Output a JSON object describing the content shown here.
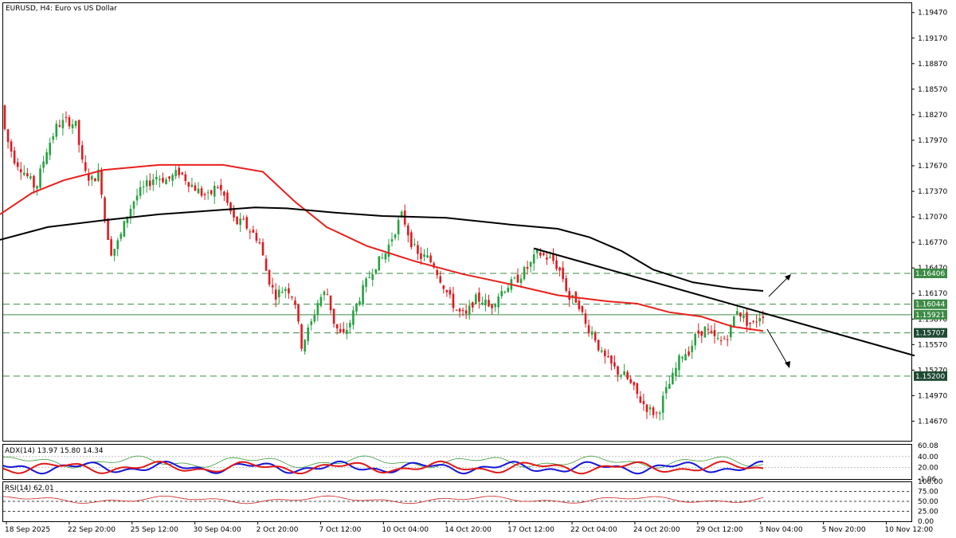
{
  "colors": {
    "background": "#ffffff",
    "grid": "#c0c0c0",
    "bull_candle": "#26a241",
    "bear_candle": "#e0191f",
    "level_line": "#3d8b45",
    "ma_fast": "#e8201c",
    "ma_slow": "#000000",
    "trendline": "#000000",
    "adx_main": "#3a9b3a",
    "adx_plus": "#1515d8",
    "adx_minus": "#e01818",
    "rsi": "#cc2020",
    "price_label_bg": "#3d8b45",
    "price_label_dark_bg": "#1e4a32"
  },
  "chart_data": [
    {
      "type": "candlestick",
      "title": "EURUSD, H4:  Euro vs US Dollar",
      "ylim": [
        1.1444,
        1.1958
      ],
      "y_ticks": [
        "1.19470",
        "1.19170",
        "1.18870",
        "1.18570",
        "1.18270",
        "1.17970",
        "1.17670",
        "1.17370",
        "1.17070",
        "1.16770",
        "1.16470",
        "1.16170",
        "1.15870",
        "1.15570",
        "1.15270",
        "1.14970",
        "1.14670"
      ],
      "x_ticks": [
        "18 Sep 2025",
        "22 Sep 20:00",
        "25 Sep 12:00",
        "30 Sep 04:00",
        "2 Oct 20:00",
        "7 Oct 12:00",
        "10 Oct 04:00",
        "14 Oct 20:00",
        "17 Oct 12:00",
        "22 Oct 04:00",
        "24 Oct 20:00",
        "29 Oct 12:00",
        "3 Nov 04:00",
        "5 Nov 20:00",
        "10 Nov 12:00"
      ],
      "close_path": [
        [
          0,
          1.1838
        ],
        [
          8,
          1.18
        ],
        [
          18,
          1.1775
        ],
        [
          30,
          1.176
        ],
        [
          45,
          1.174
        ],
        [
          58,
          1.1785
        ],
        [
          72,
          1.1815
        ],
        [
          85,
          1.182
        ],
        [
          95,
          1.1815
        ],
        [
          105,
          1.176
        ],
        [
          115,
          1.175
        ],
        [
          125,
          1.176
        ],
        [
          132,
          1.17
        ],
        [
          140,
          1.1665
        ],
        [
          150,
          1.168
        ],
        [
          160,
          1.171
        ],
        [
          170,
          1.173
        ],
        [
          180,
          1.174
        ],
        [
          195,
          1.1755
        ],
        [
          210,
          1.175
        ],
        [
          225,
          1.176
        ],
        [
          240,
          1.1745
        ],
        [
          252,
          1.1735
        ],
        [
          262,
          1.173
        ],
        [
          272,
          1.1745
        ],
        [
          282,
          1.173
        ],
        [
          295,
          1.17
        ],
        [
          305,
          1.17
        ],
        [
          315,
          1.169
        ],
        [
          325,
          1.168
        ],
        [
          335,
          1.164
        ],
        [
          345,
          1.1615
        ],
        [
          360,
          1.1625
        ],
        [
          370,
          1.161
        ],
        [
          378,
          1.1555
        ],
        [
          390,
          1.158
        ],
        [
          400,
          1.161
        ],
        [
          410,
          1.162
        ],
        [
          420,
          1.158
        ],
        [
          430,
          1.1565
        ],
        [
          440,
          1.1585
        ],
        [
          450,
          1.161
        ],
        [
          460,
          1.163
        ],
        [
          470,
          1.165
        ],
        [
          482,
          1.166
        ],
        [
          495,
          1.169
        ],
        [
          505,
          1.171
        ],
        [
          515,
          1.168
        ],
        [
          525,
          1.166
        ],
        [
          535,
          1.166
        ],
        [
          545,
          1.165
        ],
        [
          555,
          1.163
        ],
        [
          565,
          1.161
        ],
        [
          575,
          1.1595
        ],
        [
          585,
          1.159
        ],
        [
          595,
          1.161
        ],
        [
          605,
          1.161
        ],
        [
          615,
          1.16
        ],
        [
          625,
          1.1615
        ],
        [
          635,
          1.1625
        ],
        [
          645,
          1.163
        ],
        [
          655,
          1.164
        ],
        [
          665,
          1.165
        ],
        [
          675,
          1.1665
        ],
        [
          685,
          1.166
        ],
        [
          695,
          1.1655
        ],
        [
          705,
          1.164
        ],
        [
          715,
          1.161
        ],
        [
          725,
          1.161
        ],
        [
          735,
          1.158
        ],
        [
          745,
          1.157
        ],
        [
          755,
          1.1545
        ],
        [
          765,
          1.1535
        ],
        [
          775,
          1.1525
        ],
        [
          785,
          1.152
        ],
        [
          795,
          1.1505
        ],
        [
          805,
          1.149
        ],
        [
          815,
          1.148
        ],
        [
          825,
          1.1475
        ],
        [
          835,
          1.15
        ],
        [
          845,
          1.152
        ],
        [
          855,
          1.1545
        ],
        [
          865,
          1.155
        ],
        [
          875,
          1.157
        ],
        [
          885,
          1.1575
        ],
        [
          895,
          1.1565
        ],
        [
          905,
          1.156
        ],
        [
          915,
          1.157
        ],
        [
          925,
          1.16
        ],
        [
          935,
          1.1585
        ],
        [
          945,
          1.158
        ],
        [
          955,
          1.1593
        ]
      ]
    },
    {
      "type": "line",
      "series": [
        {
          "role": "ma_fast",
          "points": [
            [
              0,
              1.171
            ],
            [
              40,
              1.1735
            ],
            [
              80,
              1.175
            ],
            [
              130,
              1.1762
            ],
            [
              200,
              1.1768
            ],
            [
              280,
              1.1768
            ],
            [
              330,
              1.176
            ],
            [
              370,
              1.1725
            ],
            [
              410,
              1.1695
            ],
            [
              460,
              1.1673
            ],
            [
              520,
              1.1655
            ],
            [
              580,
              1.164
            ],
            [
              640,
              1.1628
            ],
            [
              700,
              1.1615
            ],
            [
              760,
              1.1608
            ],
            [
              800,
              1.1605
            ],
            [
              840,
              1.1595
            ],
            [
              880,
              1.159
            ],
            [
              920,
              1.1578
            ],
            [
              958,
              1.1573
            ]
          ]
        },
        {
          "role": "ma_slow",
          "points": [
            [
              0,
              1.168
            ],
            [
              60,
              1.1695
            ],
            [
              130,
              1.1703
            ],
            [
              200,
              1.171
            ],
            [
              260,
              1.1714
            ],
            [
              320,
              1.1718
            ],
            [
              360,
              1.1717
            ],
            [
              420,
              1.1712
            ],
            [
              480,
              1.1708
            ],
            [
              560,
              1.1706
            ],
            [
              640,
              1.1698
            ],
            [
              700,
              1.1693
            ],
            [
              740,
              1.1683
            ],
            [
              780,
              1.1667
            ],
            [
              820,
              1.1645
            ],
            [
              870,
              1.163
            ],
            [
              920,
              1.1623
            ],
            [
              958,
              1.162
            ]
          ]
        },
        {
          "role": "trendline",
          "points": [
            [
              670,
              1.167
            ],
            [
              1148,
              1.1544
            ]
          ]
        }
      ]
    },
    {
      "type": "levels",
      "levels": [
        {
          "value": 1.16406,
          "label": "1.16406",
          "style": "dashed"
        },
        {
          "value": 1.16044,
          "label": "1.16044",
          "style": "dashed"
        },
        {
          "value": 1.15921,
          "label": "1.15921",
          "style": "solid"
        },
        {
          "value": 1.15707,
          "label": "1.15707",
          "style": "dashed"
        },
        {
          "value": 1.152,
          "label": "1.15200",
          "style": "dashed"
        }
      ]
    },
    {
      "type": "indicator",
      "title": "ADX(14) 13.97 15.80 14.34",
      "ylim": [
        -1.06,
        63
      ],
      "y_ticks": [
        "60.08",
        "40.00",
        "20.00",
        "-1.06"
      ],
      "levels": [
        20,
        40
      ]
    },
    {
      "type": "indicator",
      "title": "RSI(14) 62.01",
      "ylim": [
        0,
        100
      ],
      "y_ticks": [
        "100.00",
        "75.00",
        "50.00",
        "25.00",
        "0.00"
      ],
      "levels": [
        25,
        50,
        75
      ]
    }
  ]
}
